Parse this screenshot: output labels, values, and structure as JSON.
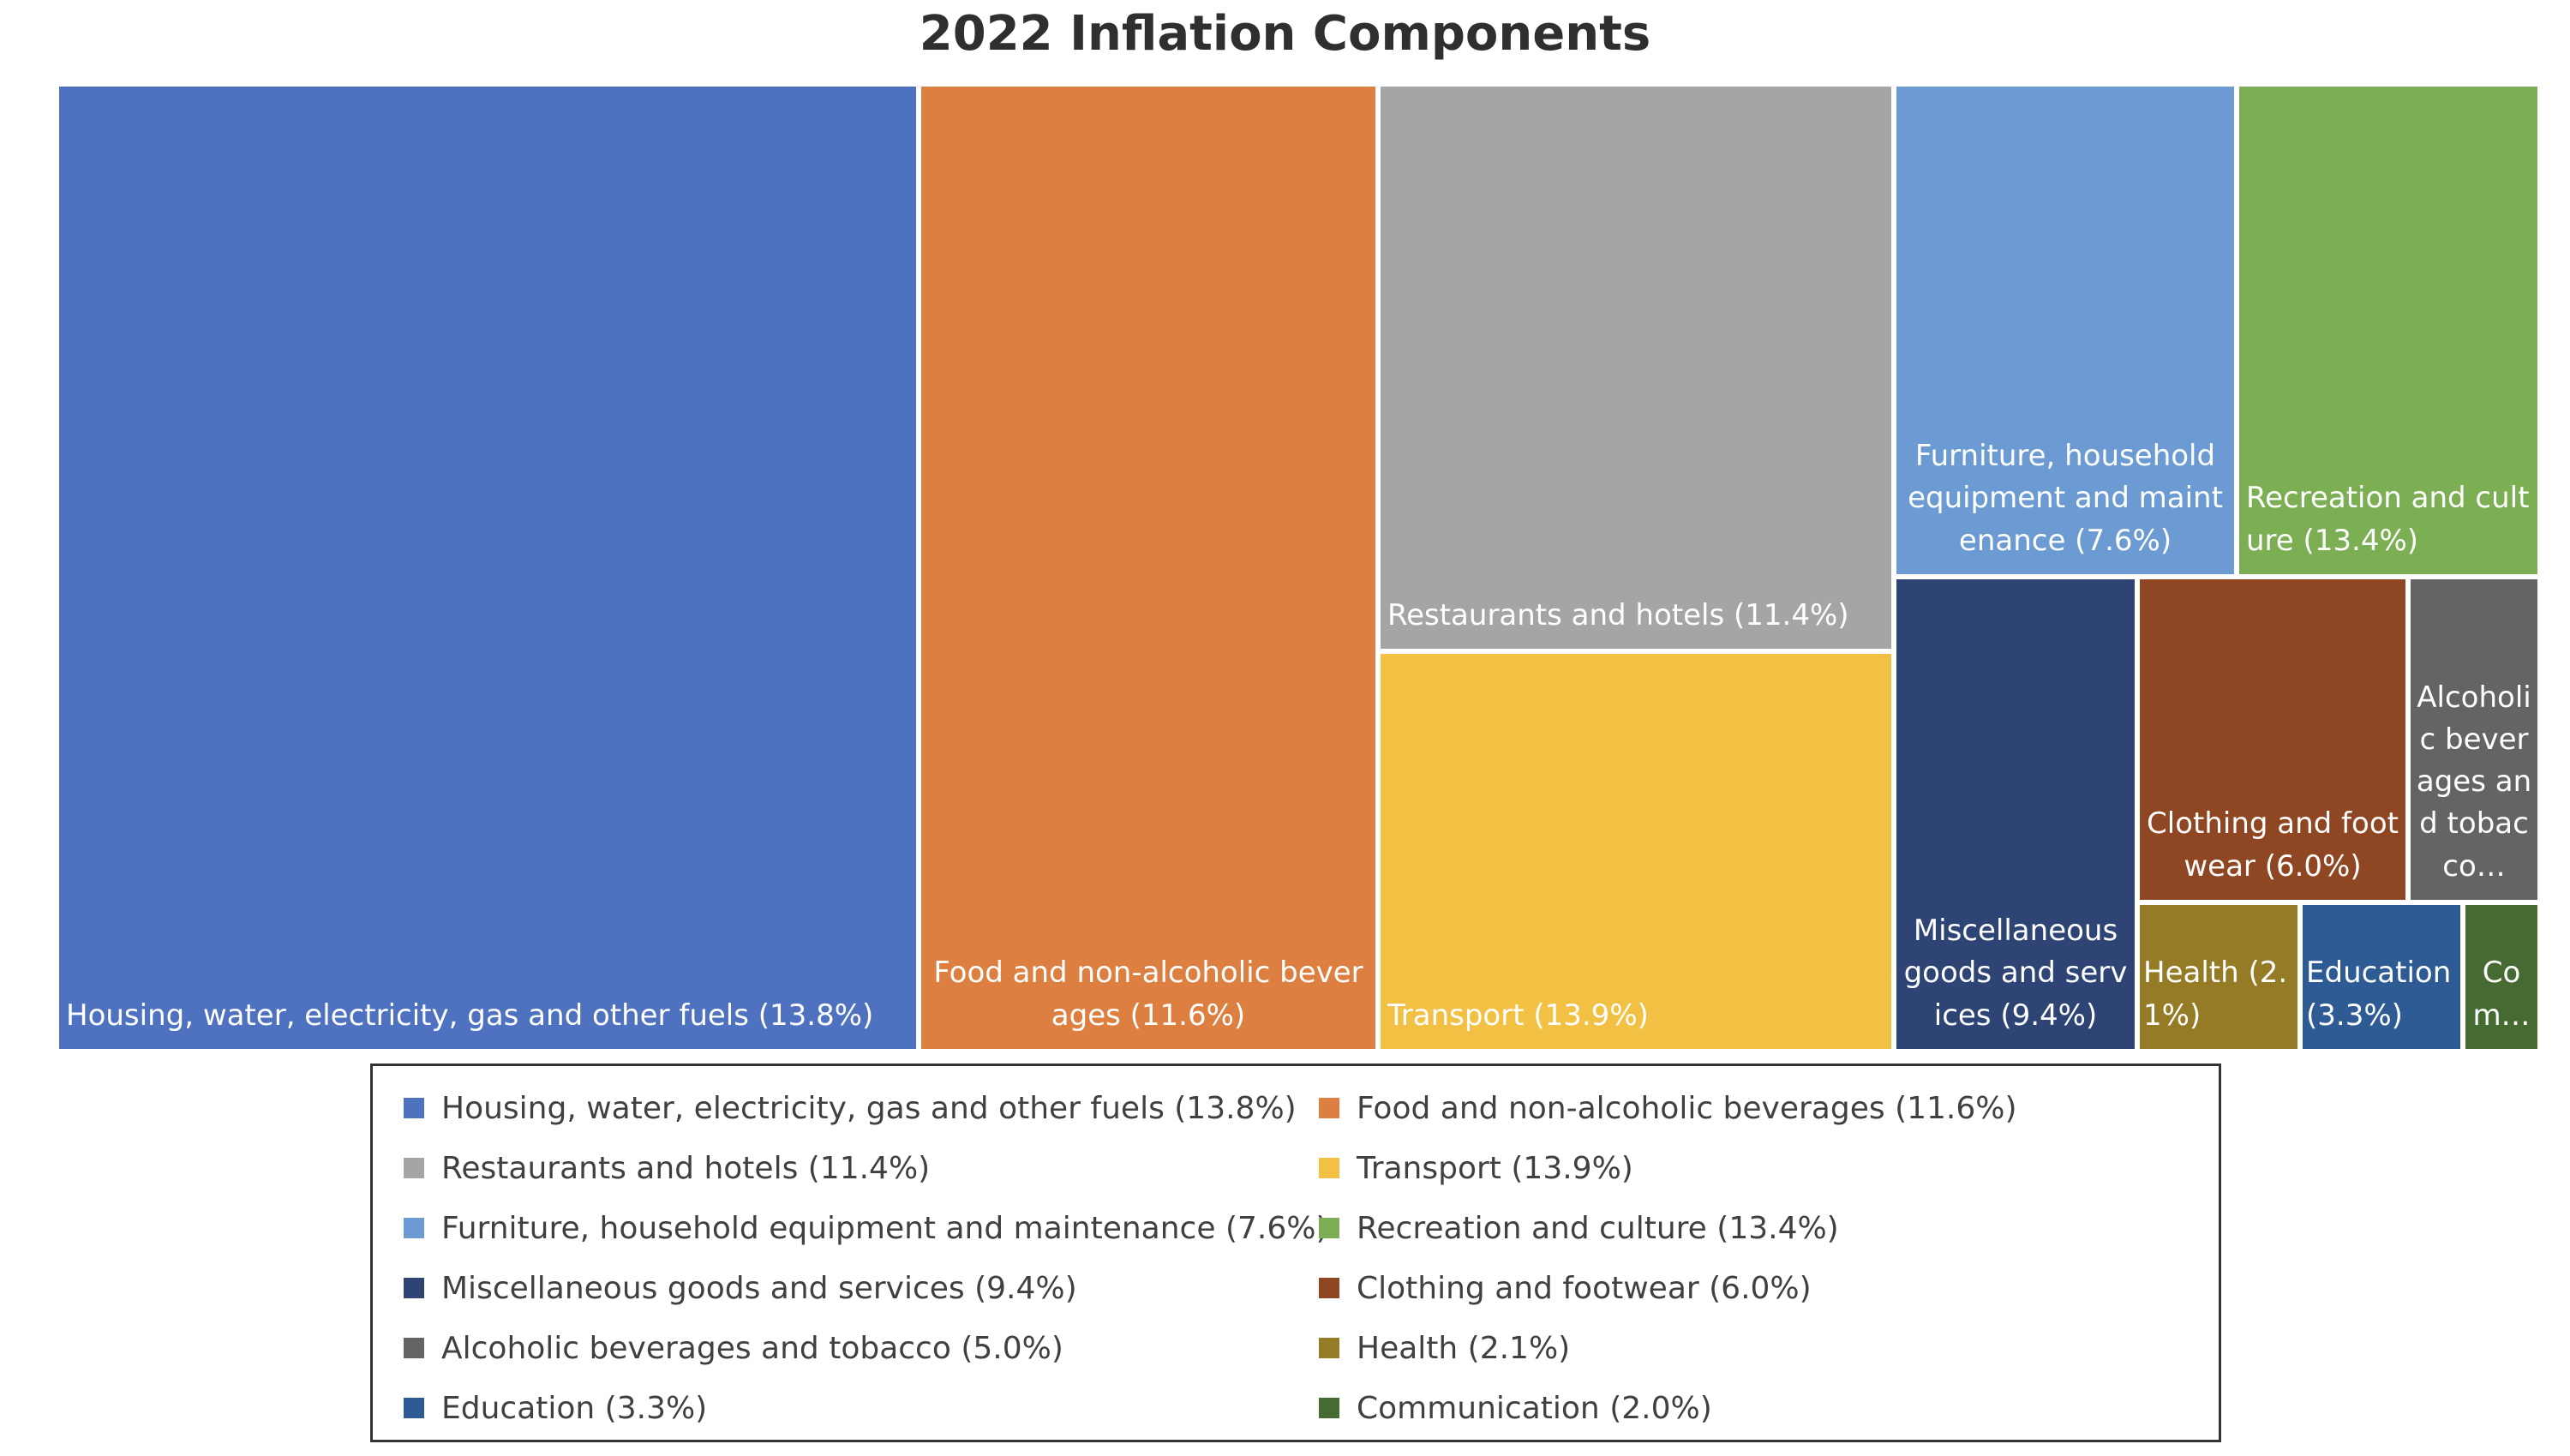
{
  "chart_data": {
    "type": "treemap",
    "title": "2022 Inflation Components",
    "series": [
      {
        "name": "Housing, water, electricity, gas and other fuels",
        "value": 13.8,
        "label": "Housing, water, electricity, gas and other fuels (13.8%)",
        "color": "#4e72c0"
      },
      {
        "name": "Food and non-alcoholic beverages",
        "value": 11.6,
        "label": "Food and non-alcoholic beverages (11.6%)",
        "color": "#dd7f40"
      },
      {
        "name": "Restaurants and hotels",
        "value": 11.4,
        "label": "Restaurants and hotels (11.4%)",
        "color": "#a5a5a5"
      },
      {
        "name": "Transport",
        "value": 13.9,
        "label": "Transport (13.9%)",
        "color": "#f2c144"
      },
      {
        "name": "Furniture, household equipment and maintenance",
        "value": 7.6,
        "label": "Furniture, household equipment and maintenance (7.6%)",
        "color": "#6b9bd2"
      },
      {
        "name": "Recreation and culture",
        "value": 13.4,
        "label": "Recreation and culture (13.4%)",
        "color": "#7cae54"
      },
      {
        "name": "Miscellaneous goods and services",
        "value": 9.4,
        "label": "Miscellaneous goods and services (9.4%)",
        "color": "#2d4474"
      },
      {
        "name": "Clothing and footwear",
        "value": 6.0,
        "label": "Clothing and footwear (6.0%)",
        "color": "#8f4622"
      },
      {
        "name": "Alcoholic beverages and tobacco",
        "value": 5.0,
        "label": "Alcoholic beverages and tobacco (5.0%)",
        "color": "#646464"
      },
      {
        "name": "Health",
        "value": 2.1,
        "label": "Health (2.1%)",
        "color": "#967b27"
      },
      {
        "name": "Education",
        "value": 3.3,
        "label": "Education (3.3%)",
        "color": "#2f5b94"
      },
      {
        "name": "Communication",
        "value": 2.0,
        "label": "Communication (2.0%)",
        "color": "#456b32"
      }
    ],
    "tile_labels": [
      "Housing, water, electricity, gas and other fuels (13.8%)",
      "Food and non-alcoholic beverages (11.6%)",
      "Restaurants and hotels (11.4%)",
      "Transport (13.9%)",
      "Furniture, household equipment and maintenance (7.6%)",
      "Recreation and culture (13.4%)",
      "Miscellaneous goods and services (9.4%)",
      "Clothing and footwear (6.0%)",
      "Alcoholic beverages and tobacco…",
      "Health (2.1%)",
      "Education (3.3%)",
      "Com…"
    ],
    "legend_position": "bottom"
  }
}
